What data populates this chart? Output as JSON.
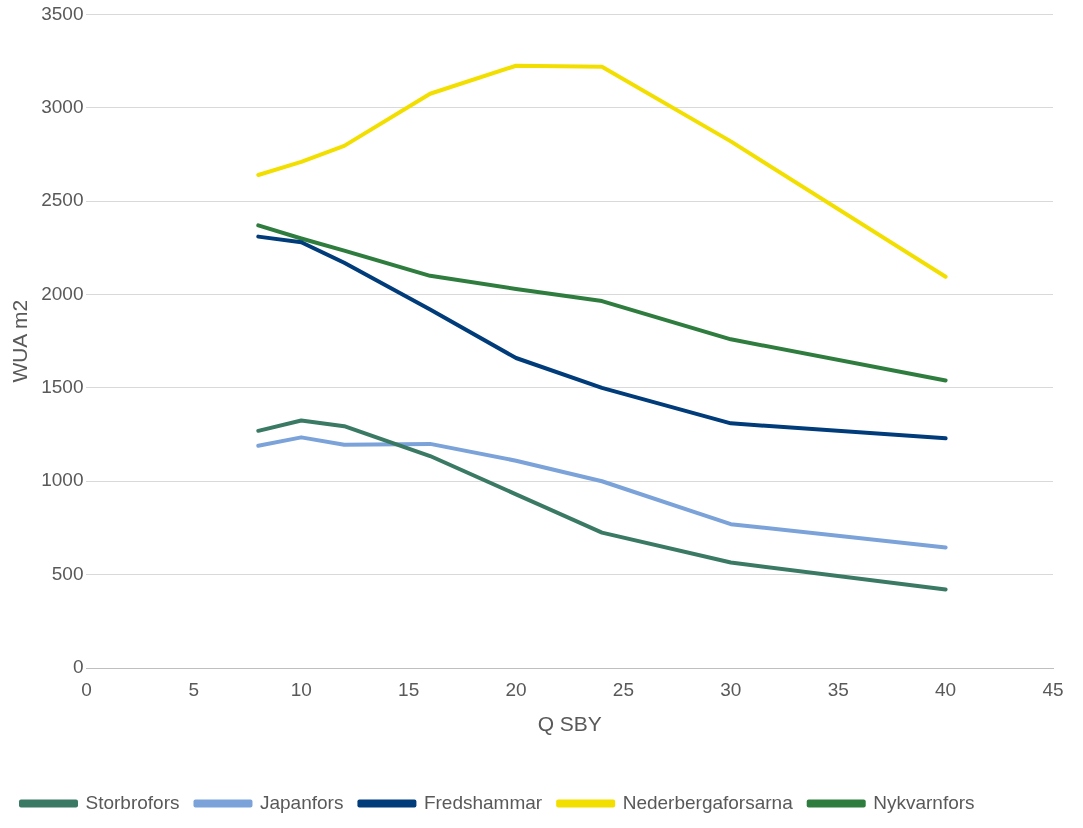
{
  "chart_data": {
    "type": "line",
    "xlabel": "Q SBY",
    "ylabel": "WUA m2",
    "x": [
      8,
      10,
      12,
      16,
      20,
      24,
      30,
      40
    ],
    "xlim": [
      0,
      45
    ],
    "xticks": [
      0,
      5,
      10,
      15,
      20,
      25,
      30,
      35,
      40,
      45
    ],
    "ylim": [
      0,
      3500
    ],
    "yticks": [
      0,
      500,
      1000,
      1500,
      2000,
      2500,
      3000,
      3500
    ],
    "grid": "y",
    "legend": "bottom",
    "marker": "none",
    "line_style": "solid",
    "series": [
      {
        "name": "Storbrofors",
        "color": "#3a7a64",
        "values": [
          1270,
          1325,
          1295,
          1135,
          930,
          725,
          565,
          420
        ]
      },
      {
        "name": "Japanfors",
        "color": "#7ba3d9",
        "values": [
          1190,
          1235,
          1195,
          1200,
          1110,
          1000,
          770,
          645
        ]
      },
      {
        "name": "Fredshammar",
        "color": "#003b7a",
        "values": [
          2310,
          2280,
          2170,
          1920,
          1660,
          1500,
          1310,
          1230
        ]
      },
      {
        "name": "Nederbergaforsarna",
        "color": "#f2df00",
        "values": [
          2640,
          2710,
          2796,
          3075,
          3225,
          3220,
          2820,
          2095
        ]
      },
      {
        "name": "Nykvarnfors",
        "color": "#2f7d3e",
        "values": [
          2370,
          2300,
          2235,
          2100,
          2030,
          1965,
          1760,
          1540
        ]
      }
    ]
  }
}
